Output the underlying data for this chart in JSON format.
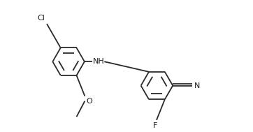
{
  "bg_color": "#ffffff",
  "line_color": "#2a2a2a",
  "label_color": "#1a1a1a",
  "label_Cl": "Cl",
  "label_NH": "NH",
  "label_O": "O",
  "label_F": "F",
  "label_N": "N",
  "line_width": 1.3,
  "dpi": 100,
  "fig_width": 3.62,
  "fig_height": 1.89
}
